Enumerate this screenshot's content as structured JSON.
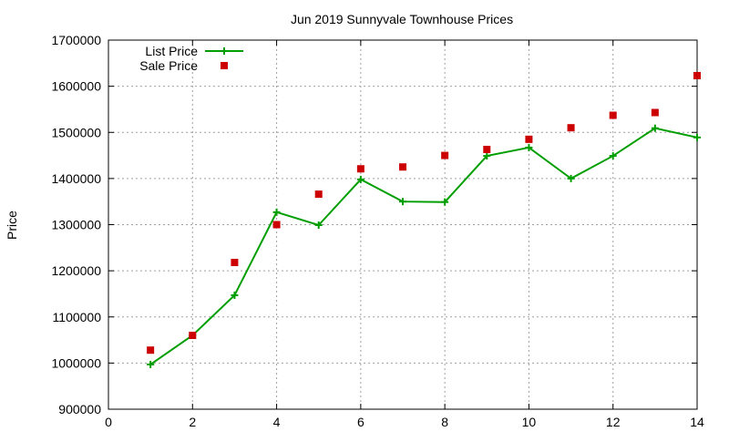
{
  "chart_data": {
    "type": "line",
    "title": "Jun 2019 Sunnyvale Townhouse Prices",
    "xlabel": "",
    "ylabel": "Price",
    "xlim": [
      0,
      14
    ],
    "ylim": [
      900000,
      1700000
    ],
    "x_ticks": [
      0,
      2,
      4,
      6,
      8,
      10,
      12,
      14
    ],
    "y_ticks": [
      900000,
      1000000,
      1100000,
      1200000,
      1300000,
      1400000,
      1500000,
      1600000,
      1700000
    ],
    "grid": true,
    "legend_position": "top-left",
    "x": [
      1,
      2,
      3,
      4,
      5,
      6,
      7,
      8,
      9,
      10,
      11,
      12,
      13,
      14
    ],
    "series": [
      {
        "name": "List Price",
        "style": "linespoints",
        "marker": "plus",
        "color": "#009e00",
        "values": [
          997000,
          1060000,
          1147000,
          1327000,
          1299000,
          1398000,
          1350000,
          1349000,
          1449000,
          1467000,
          1400000,
          1449000,
          1509000,
          1489000
        ]
      },
      {
        "name": "Sale Price",
        "style": "points",
        "marker": "square",
        "color": "#cc0000",
        "values": [
          1028000,
          1060000,
          1218000,
          1300000,
          1366000,
          1421000,
          1425000,
          1450000,
          1463000,
          1485000,
          1510000,
          1537000,
          1543000,
          1623000
        ]
      }
    ]
  }
}
